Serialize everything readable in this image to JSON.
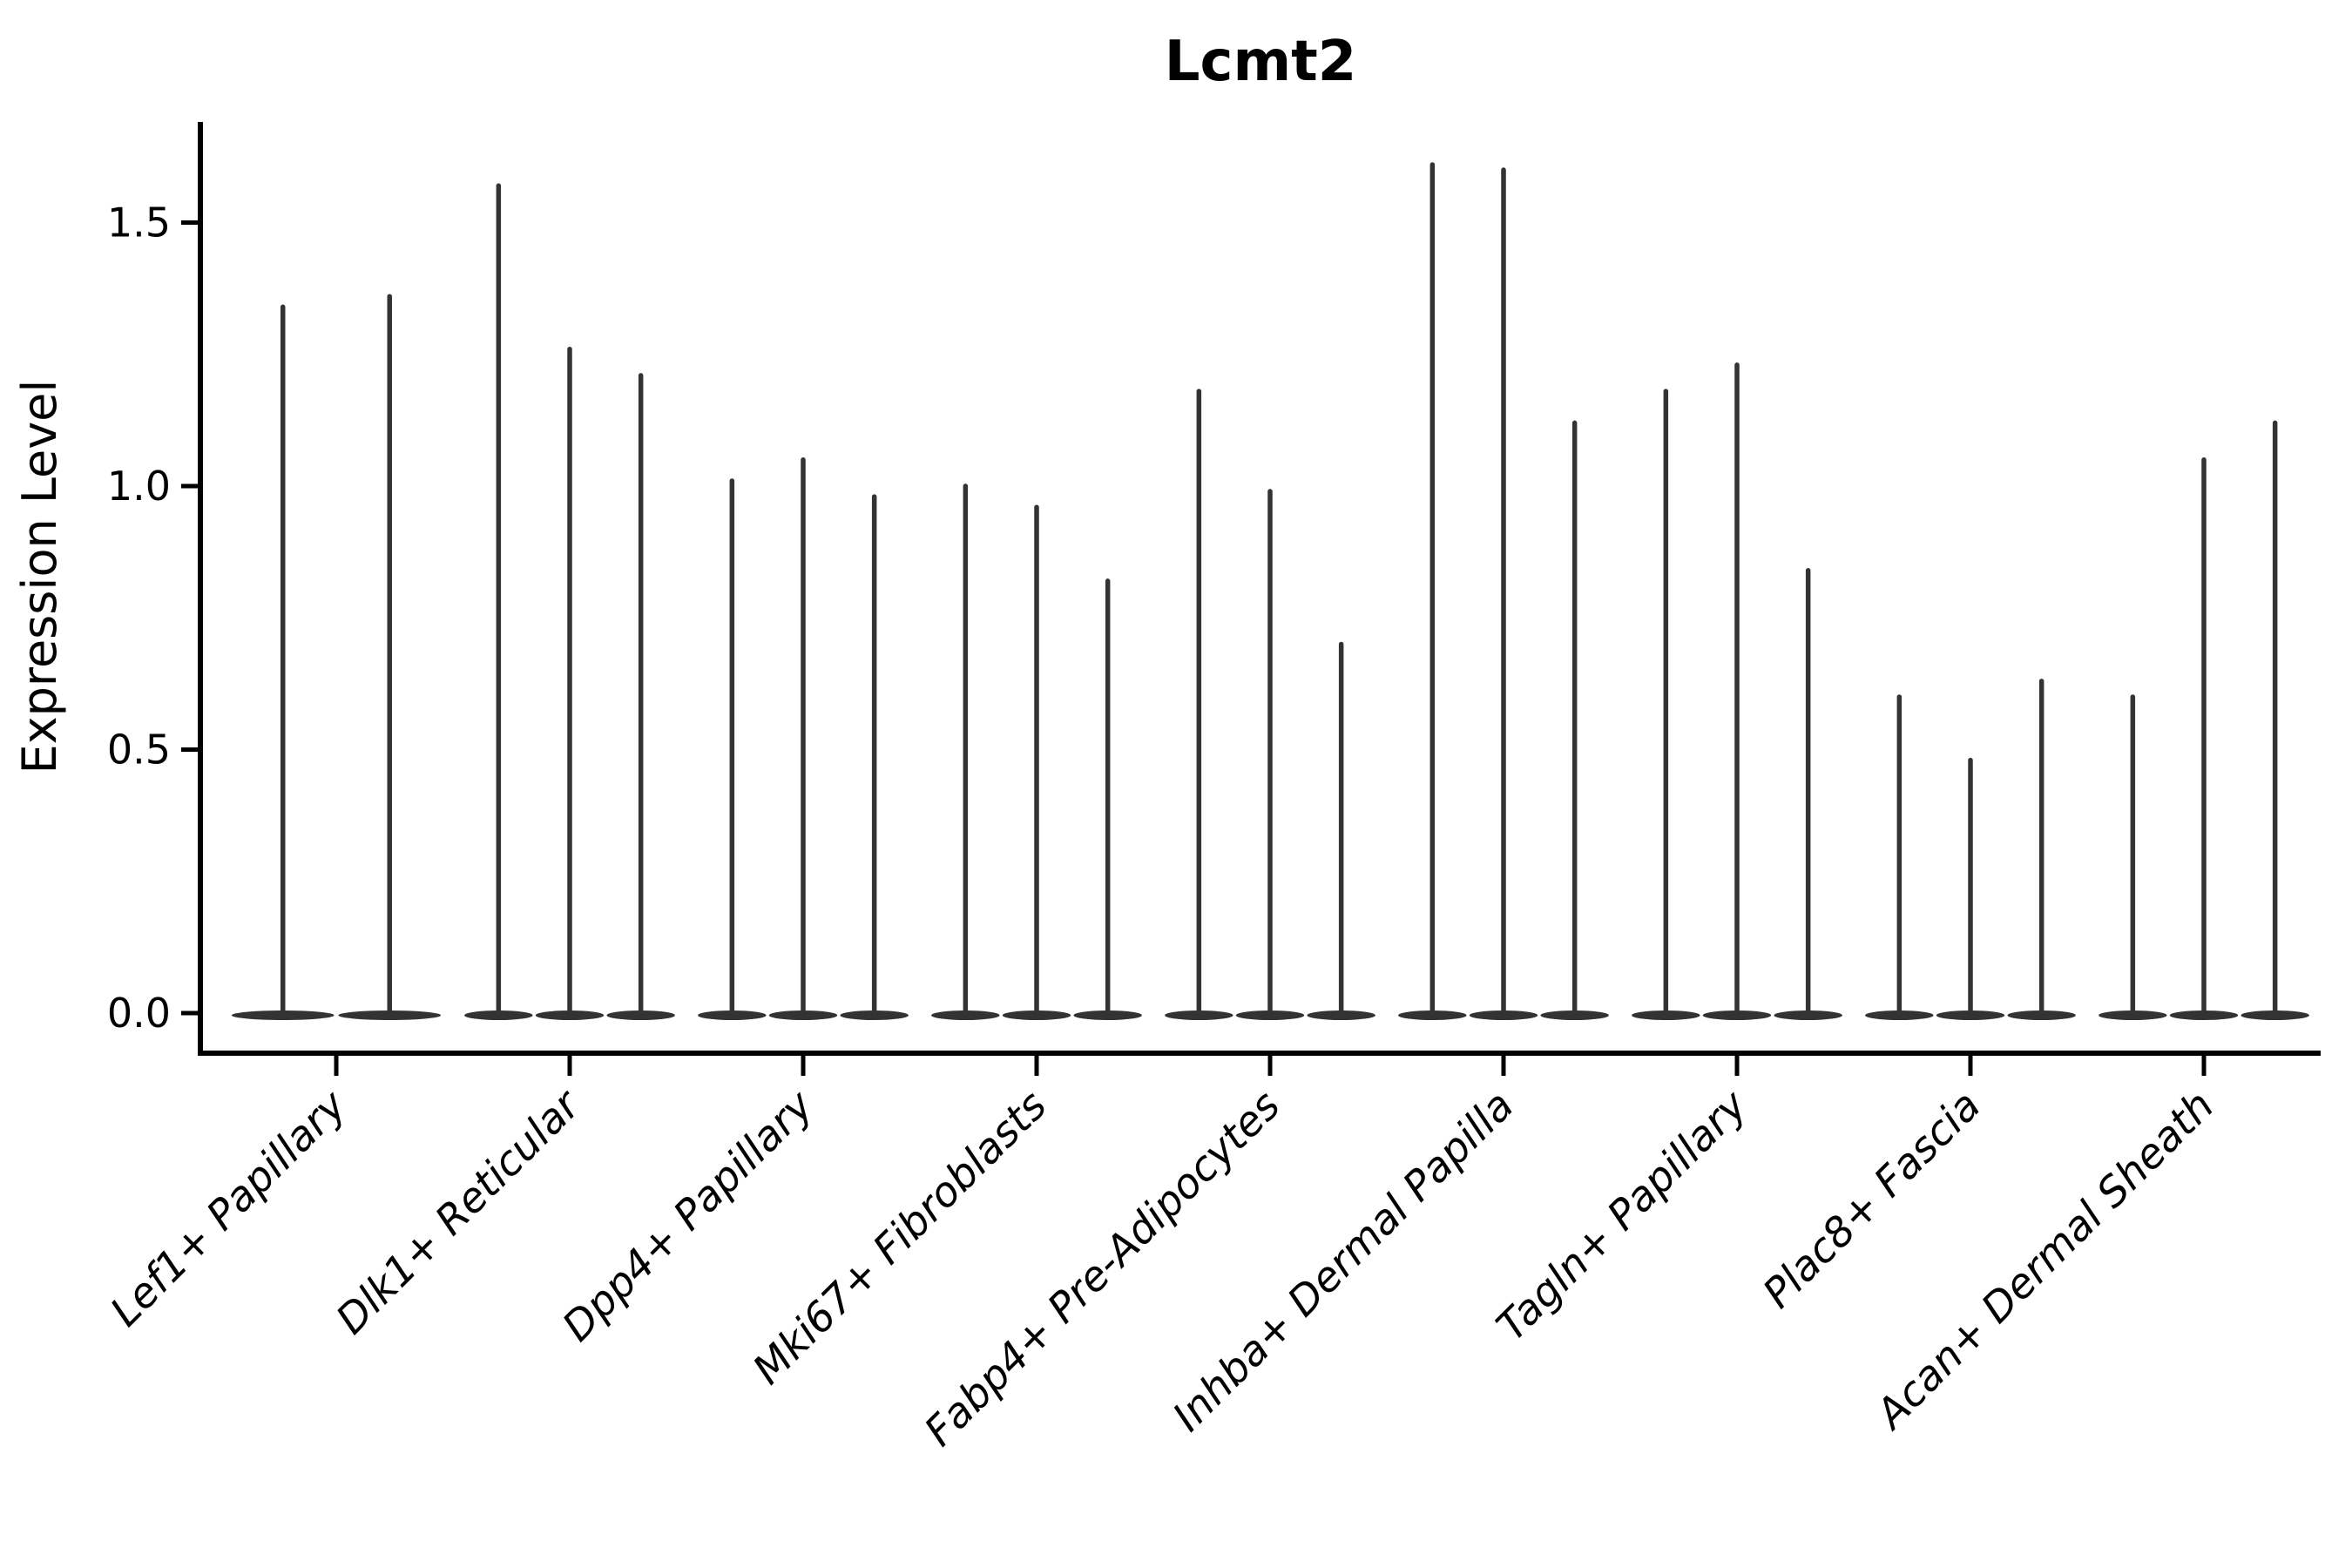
{
  "chart_data": {
    "type": "violin",
    "title": "Lcmt2",
    "ylabel": "Expression Level",
    "xlabel": "",
    "yticks": [
      0.0,
      0.5,
      1.0,
      1.5
    ],
    "ylim": [
      0,
      1.69
    ],
    "grid": false,
    "legend": "none",
    "violin_color": "#333333",
    "axis_color": "#000000",
    "categories": [
      "Lef1+ Papillary",
      "Dlk1+ Reticular",
      "Dpp4+ Papillary",
      "Mki67+ Fibroblasts",
      "Fabp4+ Pre-Adipocytes",
      "Inhba+ Dermal Papilla",
      "Tagln+ Papillary",
      "Plac8+ Fascia",
      "Acan+ Dermal Sheath"
    ],
    "groups": [
      {
        "category": "Lef1+ Papillary",
        "violin_max_expression": [
          1.34,
          1.36
        ]
      },
      {
        "category": "Dlk1+ Reticular",
        "violin_max_expression": [
          1.57,
          1.26,
          1.21
        ]
      },
      {
        "category": "Dpp4+ Papillary",
        "violin_max_expression": [
          1.01,
          1.05,
          0.98
        ]
      },
      {
        "category": "Mki67+ Fibroblasts",
        "violin_max_expression": [
          1.0,
          0.96,
          0.82
        ]
      },
      {
        "category": "Fabp4+ Pre-Adipocytes",
        "violin_max_expression": [
          1.18,
          0.99,
          0.7
        ]
      },
      {
        "category": "Inhba+ Dermal Papilla",
        "violin_max_expression": [
          1.61,
          1.6,
          1.12
        ]
      },
      {
        "category": "Tagln+ Papillary",
        "violin_max_expression": [
          1.18,
          1.23,
          0.84
        ]
      },
      {
        "category": "Plac8+ Fascia",
        "violin_max_expression": [
          0.6,
          0.48,
          0.63
        ]
      },
      {
        "category": "Acan+ Dermal Sheath",
        "violin_max_expression": [
          0.6,
          1.05,
          1.12
        ]
      }
    ],
    "violin_shape_note": "all density mass at 0 with thin spike to max"
  }
}
